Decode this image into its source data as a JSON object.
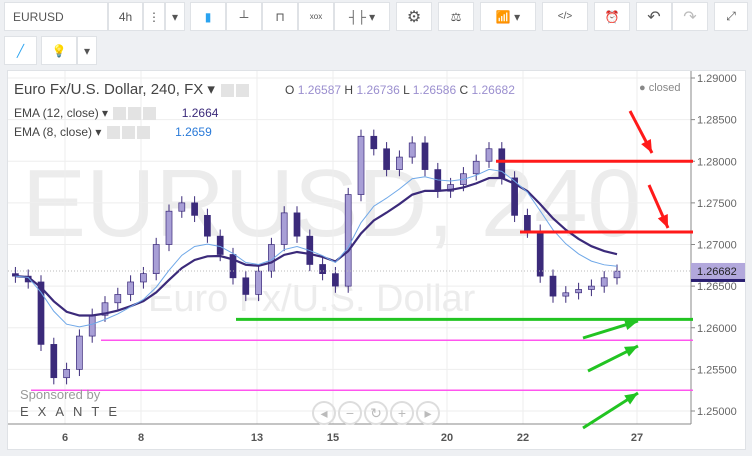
{
  "toolbar": {
    "symbol": "EURUSD",
    "interval": "4h",
    "icons": [
      "more-vertical-icon",
      "dropdown-icon",
      "candles-icon",
      "bars-icon",
      "line-icon",
      "point-figure-icon",
      "indicator-icon",
      "dropdown-icon",
      "settings-icon",
      "compare-icon",
      "studies-icon",
      "dropdown-icon",
      "script-icon",
      "alert-icon",
      "undo-icon",
      "redo-icon",
      "fullscreen-icon"
    ],
    "row2_icons": [
      "brush-icon",
      "idea-icon",
      "dropdown-icon"
    ]
  },
  "legend": {
    "title": "Euro Fx/U.S. Dollar, 240, FX",
    "o_label": "O",
    "o": "1.26587",
    "h_label": "H",
    "h": "1.26736",
    "l_label": "L",
    "l": "1.26586",
    "c_label": "C",
    "c": "1.26682",
    "status": "closed",
    "ema12_label": "EMA (12, close)",
    "ema12": "1.2664",
    "ema8_label": "EMA (8, close)",
    "ema8": "1.2659"
  },
  "watermark": {
    "big": "EURUSD, 240",
    "sub": "Euro Fx/U.S. Dollar"
  },
  "sponsor": {
    "text": "Sponsored by",
    "brand": "EXANTE"
  },
  "colors": {
    "up": "#a89fd6",
    "down": "#3b2a7a",
    "ema12": "#3b2a7a",
    "ema8": "#6fa8e8",
    "red": "#ff1a1a",
    "green": "#22c422",
    "pink": "#ff55ee"
  },
  "chart_data": {
    "type": "candlestick",
    "ylim": [
      1.2475,
      1.291
    ],
    "y_ticks": [
      "1.29000",
      "1.28500",
      "1.28000",
      "1.27500",
      "1.27000",
      "1.26500",
      "1.26000",
      "1.25500",
      "1.25000"
    ],
    "x_ticks": [
      "6",
      "8",
      "13",
      "15",
      "20",
      "22",
      "27"
    ],
    "last_price": "1.26682",
    "closes": [
      1.2662,
      1.2655,
      1.258,
      1.254,
      1.255,
      1.259,
      1.2615,
      1.263,
      1.264,
      1.2655,
      1.2665,
      1.27,
      1.274,
      1.275,
      1.2735,
      1.271,
      1.2688,
      1.266,
      1.264,
      1.2668,
      1.27,
      1.2738,
      1.271,
      1.2676,
      1.2665,
      1.265,
      1.276,
      1.283,
      1.2815,
      1.279,
      1.2805,
      1.2822,
      1.279,
      1.2764,
      1.2772,
      1.2785,
      1.28,
      1.2815,
      1.278,
      1.2735,
      1.2716,
      1.2662,
      1.2638,
      1.2642,
      1.2646,
      1.265,
      1.266,
      1.2668
    ],
    "horizontal_lines": [
      {
        "price": 1.28,
        "color": "red"
      },
      {
        "price": 1.2715,
        "color": "red"
      },
      {
        "price": 1.261,
        "color": "green"
      },
      {
        "price": 1.2585,
        "color": "pink"
      },
      {
        "price": 1.2525,
        "color": "pink"
      }
    ],
    "series": [
      {
        "name": "EMA (12, close)"
      },
      {
        "name": "EMA (8, close)"
      }
    ]
  },
  "nav": [
    "scroll-left-icon",
    "zoom-out-icon",
    "reset-icon",
    "zoom-in-icon",
    "scroll-right-icon"
  ]
}
